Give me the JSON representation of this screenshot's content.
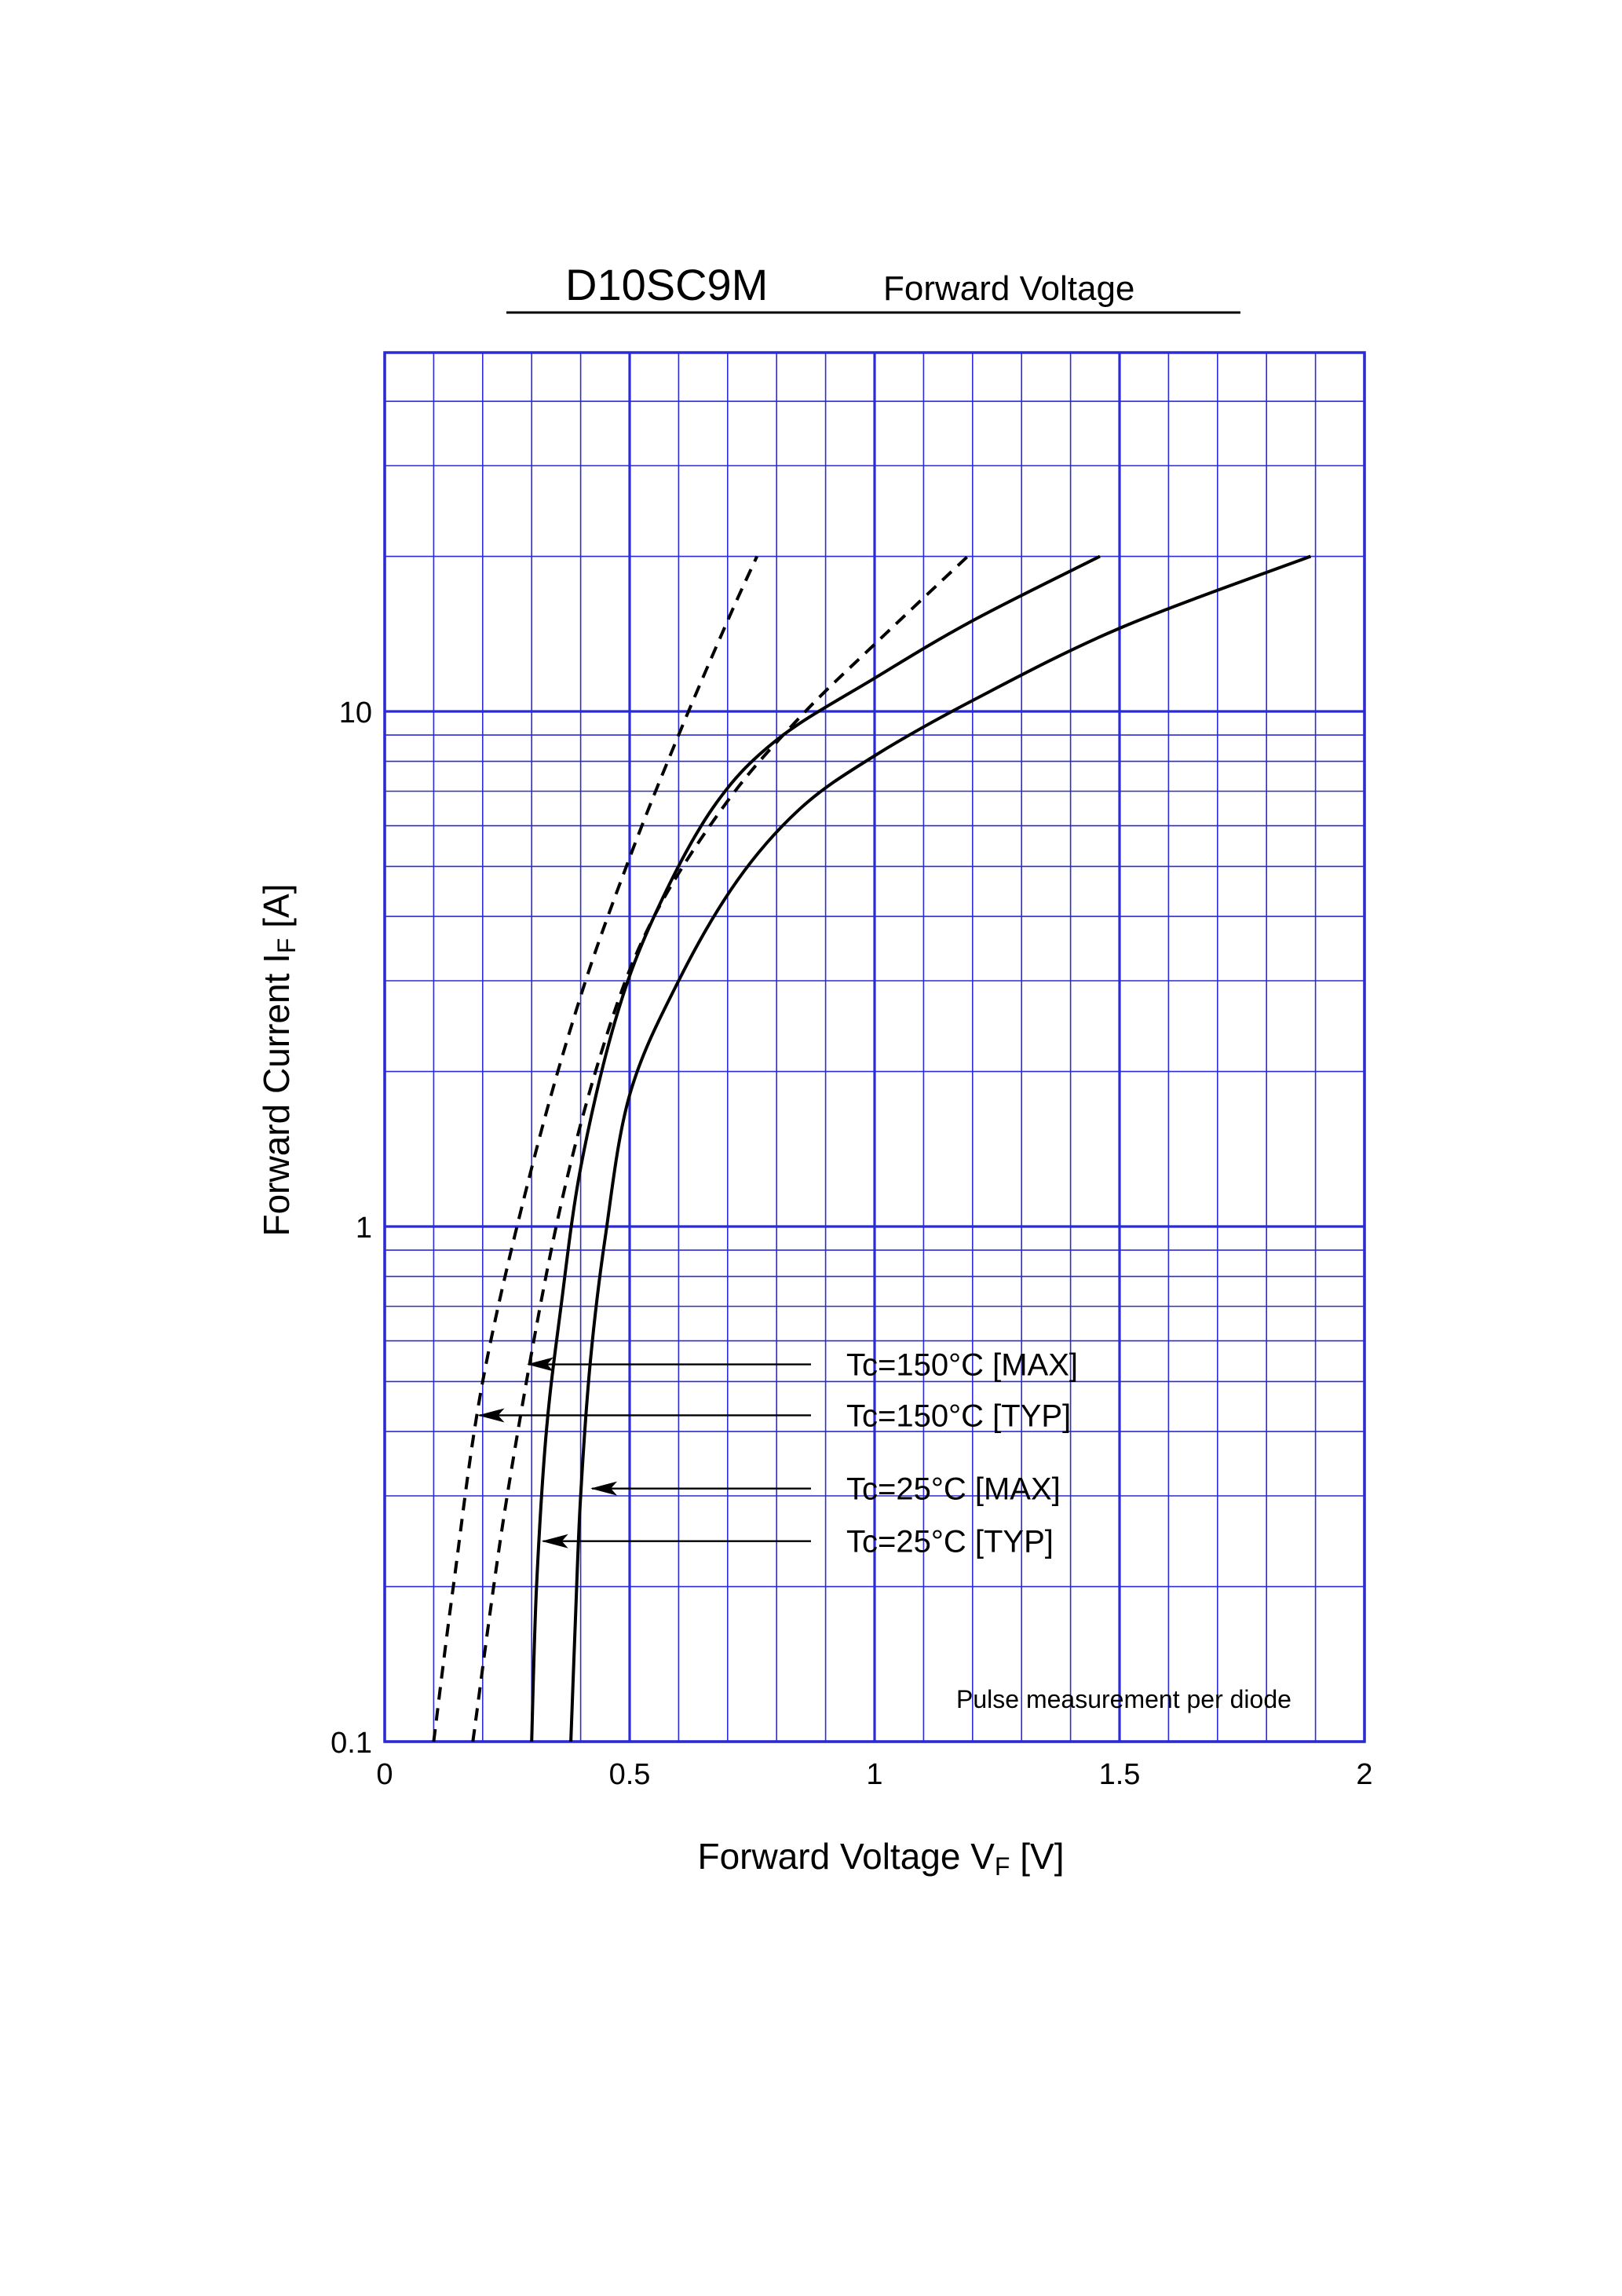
{
  "title": "D10SC9M",
  "subtitle": "Forward  Voltage",
  "chart_data": {
    "type": "line",
    "xscale": "linear",
    "yscale": "log",
    "xlim": [
      0,
      2
    ],
    "ylim": [
      0.1,
      40
    ],
    "grid": true,
    "xlabel": {
      "main": "Forward Voltage  V",
      "sub": "F",
      "unit": "  [V]"
    },
    "ylabel": {
      "main": "Forward Current  I",
      "sub": "F",
      "unit": "  [A]"
    },
    "xticks": [
      {
        "value": 0,
        "label": "0"
      },
      {
        "value": 0.5,
        "label": "0.5"
      },
      {
        "value": 1,
        "label": "1"
      },
      {
        "value": 1.5,
        "label": "1.5"
      },
      {
        "value": 2,
        "label": "2"
      }
    ],
    "yticks": [
      {
        "value": 0.1,
        "label": "0.1"
      },
      {
        "value": 1,
        "label": "1"
      },
      {
        "value": 10,
        "label": "10"
      }
    ],
    "series": [
      {
        "name": "Tc=150°C [MAX]",
        "style": "dashed",
        "x": [
          0.1,
          0.14,
          0.2,
          0.3,
          0.4,
          0.5,
          0.6,
          0.7,
          0.76
        ],
        "y": [
          0.1,
          0.2,
          0.5,
          1.3,
          2.8,
          5.2,
          9.0,
          15.0,
          20.0
        ],
        "label_at": [
          0.2,
          0.5
        ]
      },
      {
        "name": "Tc=150°C [TYP]",
        "style": "dashed",
        "x": [
          0.18,
          0.25,
          0.35,
          0.45,
          0.55,
          0.7,
          0.85,
          1.0,
          1.19
        ],
        "y": [
          0.1,
          0.3,
          1.0,
          2.3,
          4.0,
          6.7,
          9.8,
          13.5,
          20.0
        ],
        "label_at": [
          0.2,
          0.44
        ]
      },
      {
        "name": "Tc=25°C [MAX]",
        "style": "solid",
        "x": [
          0.3,
          0.31,
          0.33,
          0.36,
          0.4,
          0.47,
          0.55,
          0.67,
          0.8,
          1.0,
          1.2,
          1.46
        ],
        "y": [
          0.1,
          0.2,
          0.4,
          0.7,
          1.3,
          2.5,
          4.0,
          6.5,
          8.8,
          11.6,
          15.0,
          20.0
        ],
        "label_at": [
          0.32,
          0.52
        ]
      },
      {
        "name": "Tc=25°C [TYP]",
        "style": "solid",
        "x": [
          0.38,
          0.39,
          0.4,
          0.42,
          0.45,
          0.5,
          0.6,
          0.72,
          0.85,
          1.0,
          1.2,
          1.5,
          1.89
        ],
        "y": [
          0.1,
          0.18,
          0.3,
          0.55,
          0.95,
          1.8,
          3.0,
          4.7,
          6.5,
          8.2,
          10.5,
          14.5,
          20.0
        ],
        "label_at": [
          0.4,
          0.3
        ]
      }
    ],
    "annotations": [
      {
        "text": "Tc=150°C [MAX]",
        "target": [
          0.29,
          0.54
        ]
      },
      {
        "text": "Tc=150°C [TYP]",
        "target": [
          0.19,
          0.43
        ]
      },
      {
        "text": "Tc=25°C [MAX]",
        "target": [
          0.42,
          0.31
        ]
      },
      {
        "text": "Tc=25°C [TYP]",
        "target": [
          0.32,
          0.245
        ]
      }
    ],
    "note": "Pulse  measurement  per  diode",
    "colors": {
      "grid": "#2b2bd4",
      "line": "#000000"
    }
  }
}
